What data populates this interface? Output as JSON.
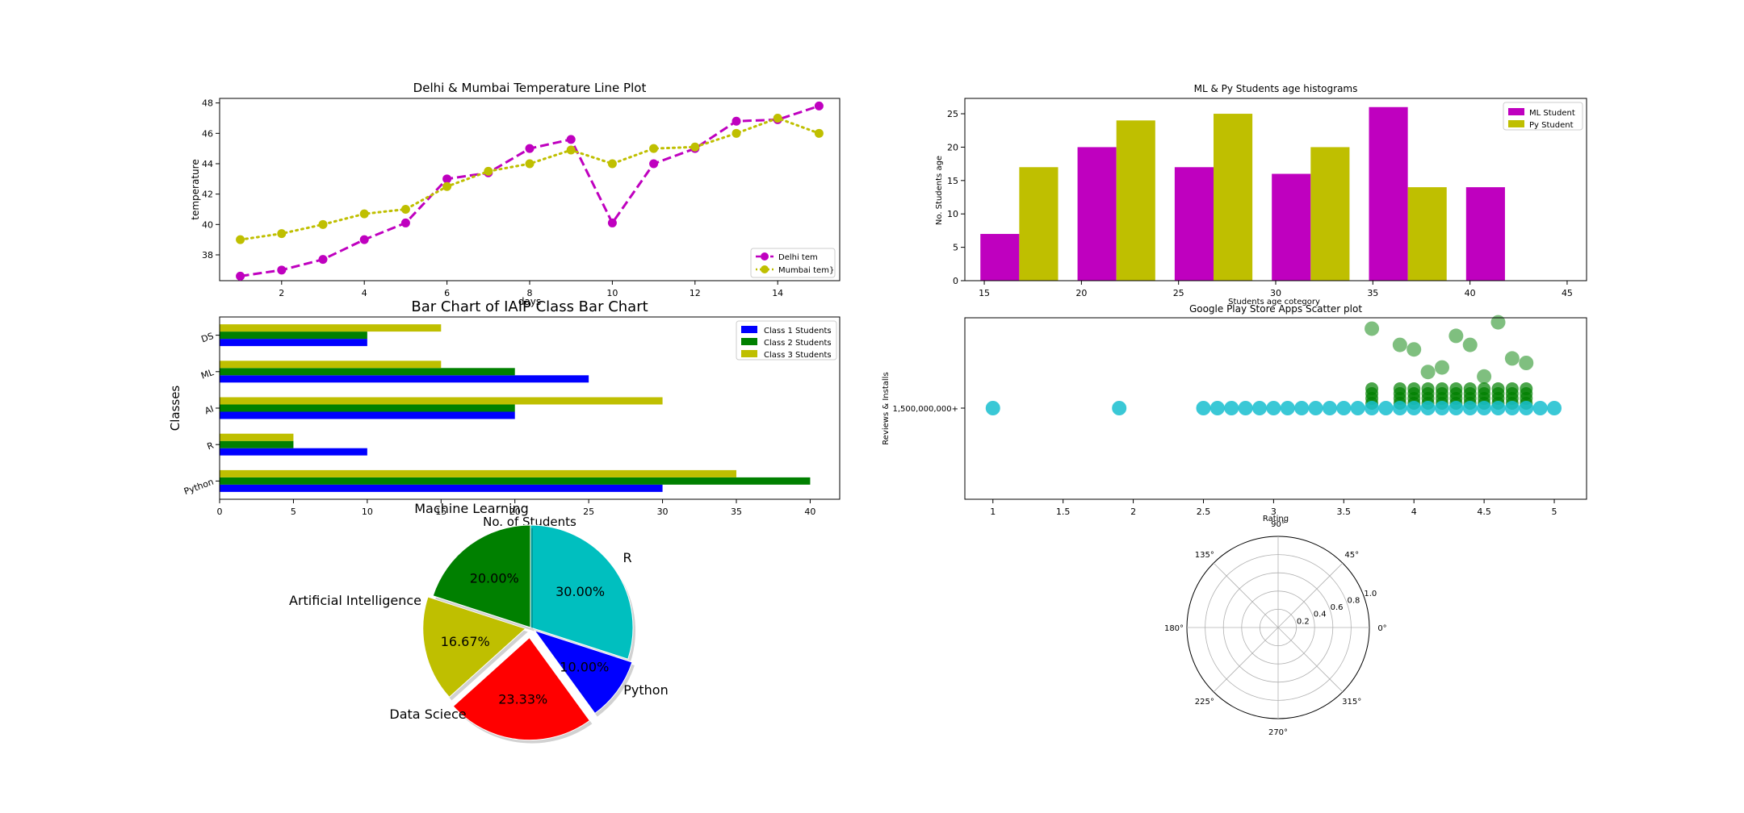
{
  "chart_data": [
    {
      "id": "line",
      "type": "line",
      "title": "Delhi  & Mumbai Temperature Line Plot",
      "xlabel": "days",
      "ylabel": "temperature",
      "xlim": [
        0.5,
        15.5
      ],
      "ylim": [
        36.3,
        48.3
      ],
      "xticks": [
        2,
        4,
        6,
        8,
        10,
        12,
        14
      ],
      "yticks": [
        38,
        40,
        42,
        44,
        46,
        48
      ],
      "legend": "bottom-right",
      "x": [
        1,
        2,
        3,
        4,
        5,
        6,
        7,
        8,
        9,
        10,
        11,
        12,
        13,
        14,
        15
      ],
      "series": [
        {
          "name": "Delhi tem",
          "color": "#bf00bf",
          "style": "dashed",
          "values": [
            36.6,
            37.0,
            37.7,
            39.0,
            40.1,
            43.0,
            43.4,
            45.0,
            45.6,
            40.1,
            44.0,
            45.0,
            46.8,
            46.9,
            47.8
          ]
        },
        {
          "name": "Mumbai tem}",
          "color": "#bfbf00",
          "style": "dotted",
          "values": [
            39.0,
            39.4,
            40.0,
            40.7,
            41.0,
            42.5,
            43.5,
            44.0,
            44.9,
            44.0,
            45.0,
            45.1,
            46.0,
            47.0,
            46.0
          ]
        }
      ]
    },
    {
      "id": "hist",
      "type": "bar",
      "title": "ML & Py Students age histograms",
      "xlabel": "Students age cotegory",
      "ylabel": "No. Students age",
      "xlim": [
        14,
        46
      ],
      "ylim": [
        0,
        27.3
      ],
      "xticks": [
        15,
        20,
        25,
        30,
        35,
        40,
        45
      ],
      "yticks": [
        0,
        5,
        10,
        15,
        20,
        25
      ],
      "legend": "top-right",
      "series": [
        {
          "name": "ML Student",
          "color": "#bf00bf",
          "x": [
            16,
            21,
            26,
            31,
            36,
            41
          ],
          "values": [
            7,
            20,
            17,
            16,
            26,
            14
          ]
        },
        {
          "name": "Py Student",
          "color": "#bfbf00",
          "x": [
            18,
            23,
            28,
            33,
            38
          ],
          "values": [
            17,
            24,
            25,
            20,
            14
          ]
        }
      ]
    },
    {
      "id": "barh",
      "type": "bar",
      "orientation": "horizontal",
      "title": "Bar Chart of IAIP Class Bar Chart",
      "xlabel": "No. of Students",
      "ylabel": "Classes",
      "xlim": [
        0,
        42
      ],
      "xticks": [
        0,
        5,
        10,
        15,
        20,
        25,
        30,
        35,
        40
      ],
      "legend": "top-right",
      "categories": [
        "Python",
        "R",
        "AI",
        "ML",
        "DS"
      ],
      "series": [
        {
          "name": "Class 1 Students",
          "color": "#0000ff",
          "values": [
            30,
            10,
            20,
            25,
            10
          ]
        },
        {
          "name": "Class 2 Students",
          "color": "#008000",
          "values": [
            40,
            5,
            20,
            20,
            10
          ]
        },
        {
          "name": "Class 3 Students",
          "color": "#bfbf00",
          "values": [
            35,
            5,
            30,
            15,
            15
          ]
        }
      ]
    },
    {
      "id": "scatter",
      "type": "scatter",
      "title": "Google Play Store Apps Scatter plot",
      "xlabel": "Rating",
      "ylabel": "Reviews & Installs",
      "xlim": [
        0.8,
        5.23
      ],
      "xticks": [
        1.0,
        1.5,
        2.0,
        2.5,
        3.0,
        3.5,
        4.0,
        4.5,
        5.0
      ],
      "ytick_label": "1,500,000,000+",
      "series": [
        {
          "name": "Installs",
          "color": "#17becf",
          "x": [
            1.0,
            1.9,
            2.5,
            2.6,
            2.7,
            2.8,
            2.9,
            3.0,
            3.1,
            3.2,
            3.3,
            3.4,
            3.5,
            3.6,
            3.7,
            3.8,
            3.9,
            4.0,
            4.1,
            4.2,
            4.3,
            4.4,
            4.5,
            4.6,
            4.7,
            4.8,
            4.9,
            5.0
          ]
        },
        {
          "name": "Reviews",
          "color": "#008000",
          "points": [
            [
              3.7,
              0.88
            ],
            [
              3.9,
              0.7
            ],
            [
              4.0,
              0.65
            ],
            [
              4.3,
              0.8
            ],
            [
              4.4,
              0.7
            ],
            [
              4.8,
              0.5
            ],
            [
              4.7,
              0.55
            ],
            [
              4.6,
              0.95
            ],
            [
              4.1,
              0.4
            ],
            [
              4.2,
              0.45
            ],
            [
              4.5,
              0.35
            ]
          ]
        }
      ]
    },
    {
      "id": "pie",
      "type": "pie",
      "title": "Machine Learning",
      "labels": [
        "Python",
        "R",
        "Machine Learning",
        "Artificial Intelligence",
        "Data Sciece"
      ],
      "values": [
        30.0,
        10.0,
        23.33,
        16.67,
        20.0
      ],
      "pct_labels": [
        "30.00%",
        "10.00%",
        "23.33%",
        "16.67%",
        "20.00%"
      ],
      "colors": [
        "#00bfbf",
        "#0000ff",
        "#ff0000",
        "#bfbf00",
        "#008000"
      ],
      "explode": [
        0,
        0.05,
        0.1,
        0.05,
        0
      ]
    },
    {
      "id": "polar",
      "type": "polar",
      "angle_ticks": [
        "0°",
        "45°",
        "90°",
        "135°",
        "180°",
        "225°",
        "270°",
        "315°"
      ],
      "radial_ticks": [
        "0.2",
        "0.4",
        "0.6",
        "0.8",
        "1.0"
      ]
    }
  ]
}
